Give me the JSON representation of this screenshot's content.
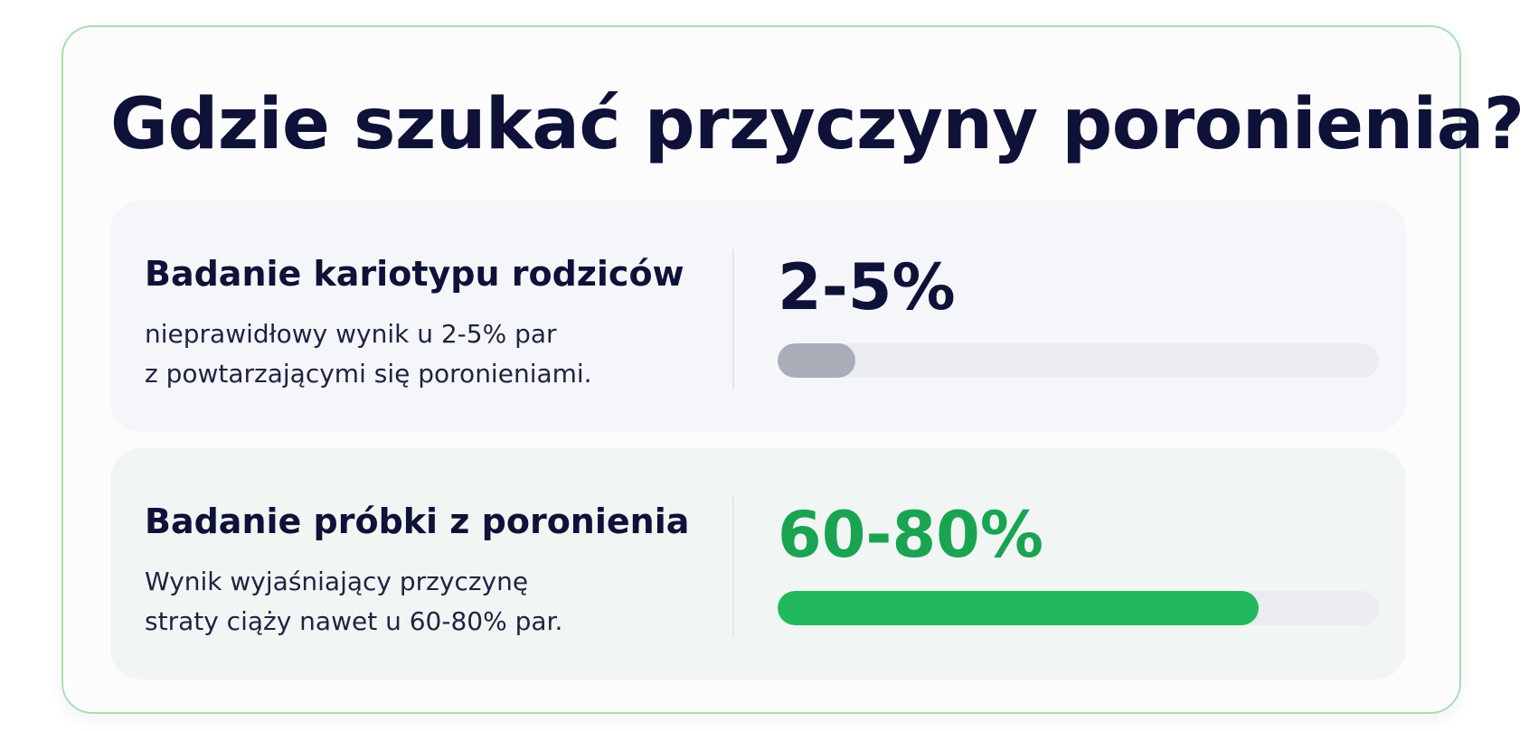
{
  "title": "Gdzie szukać przyczyny poronienia?",
  "rows": [
    {
      "heading": "Badanie kariotypu rodziców",
      "desc_lines": [
        "nieprawidłowy wynik u 2-5% par",
        "z powtarzającymi się poronieniami."
      ],
      "value": "2-5%",
      "progress_percent": 5,
      "fill_color": "#a9adb8"
    },
    {
      "heading": "Badanie próbki z poronienia",
      "desc_lines": [
        "Wynik wyjaśniający przyczynę",
        "straty ciąży nawet u 60-80% par."
      ],
      "value": "60-80%",
      "progress_percent": 80,
      "fill_color": "#21b95c"
    }
  ],
  "colors": {
    "title": "#0e1238",
    "accent_green": "#1aa452",
    "card_border": "#a8dfb1",
    "track": "#ebecf1"
  }
}
